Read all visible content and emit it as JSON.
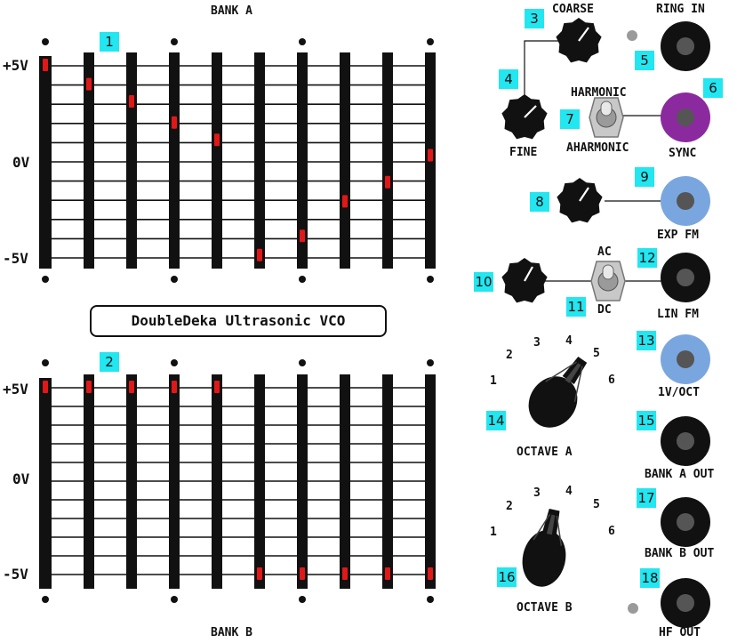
{
  "title": "DoubleDeka Ultrasonic VCO",
  "colors": {
    "badge": "#22e6f0",
    "led": "#e01818",
    "slot": "#111111",
    "jack_sync": "#8b2a9e",
    "jack_blue": "#7aa6e0",
    "knob": "#111111"
  },
  "bank_a": {
    "label": "BANK A",
    "voltage_labels": [
      "+5V",
      "0V",
      "-5V"
    ],
    "slider_levels": [
      5.0,
      4.0,
      3.1,
      2.0,
      1.1,
      -4.9,
      -3.9,
      -2.1,
      -1.1,
      0.3
    ]
  },
  "bank_b": {
    "label": "BANK B",
    "voltage_labels": [
      "+5V",
      "0V",
      "-5V"
    ],
    "slider_levels": [
      5.0,
      5.0,
      5.0,
      5.0,
      5.0,
      -5.0,
      -5.0,
      -5.0,
      -5.0,
      -5.0
    ]
  },
  "controls": {
    "coarse": "COARSE",
    "fine": "FINE",
    "harmonic": "HARMONIC",
    "aharmonic": "AHARMONIC",
    "ring_in": "RING IN",
    "sync": "SYNC",
    "exp_fm": "EXP FM",
    "ac": "AC",
    "dc": "DC",
    "lin_fm": "LIN FM",
    "voct": "1V/OCT",
    "octave_a": "OCTAVE A",
    "octave_b": "OCTAVE B",
    "bank_a_out": "BANK A OUT",
    "bank_b_out": "BANK B OUT",
    "hf_out": "HF OUT",
    "octave_numbers": [
      "1",
      "2",
      "3",
      "4",
      "5",
      "6"
    ]
  },
  "badges": [
    "1",
    "2",
    "3",
    "4",
    "5",
    "6",
    "7",
    "8",
    "9",
    "10",
    "11",
    "12",
    "13",
    "14",
    "15",
    "16",
    "17",
    "18"
  ]
}
